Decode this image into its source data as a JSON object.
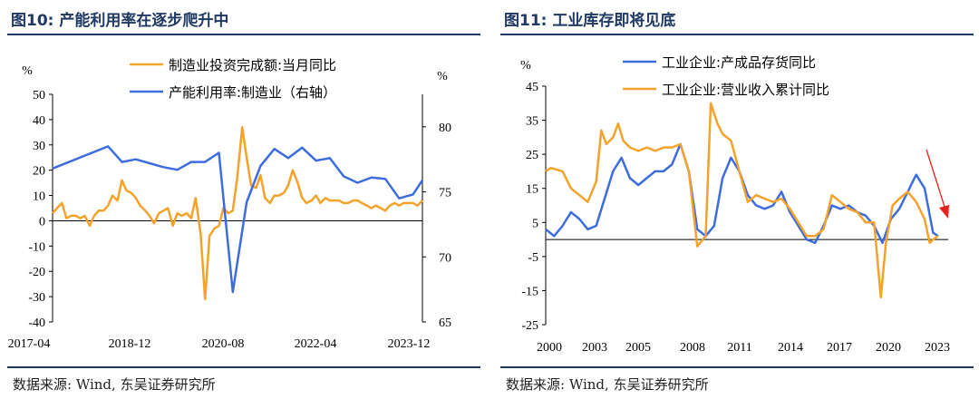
{
  "colors": {
    "blue": "#3d6cde",
    "orange": "#f5a22a",
    "title": "#1f3864",
    "red": "#e8201d"
  },
  "left": {
    "title": "图10:  产能利用率在逐步爬升中",
    "source": "数据来源:  Wind,  东吴证券研究所",
    "chart_data": {
      "type": "line",
      "left_unit": "%",
      "right_unit": "%",
      "left_ylim": [
        -40,
        50
      ],
      "left_ticks": [
        "50",
        "40",
        "30",
        "20",
        "10",
        "0",
        "-10",
        "-20",
        "-30",
        "-40"
      ],
      "right_ylim": [
        65,
        82.5
      ],
      "right_ticks": [
        "80",
        "75",
        "70",
        "65"
      ],
      "x_labels": [
        "2017-04",
        "2018-12",
        "2020-08",
        "2022-04",
        "2023-12"
      ],
      "series": [
        {
          "name": "制造业投资完成额:当月同比",
          "axis": "left",
          "color": "orange",
          "x": [
            2017.25,
            2017.33,
            2017.42,
            2017.5,
            2017.58,
            2017.67,
            2017.75,
            2017.83,
            2017.92,
            2018.0,
            2018.08,
            2018.17,
            2018.25,
            2018.33,
            2018.42,
            2018.5,
            2018.58,
            2018.67,
            2018.75,
            2018.83,
            2018.92,
            2019.0,
            2019.08,
            2019.17,
            2019.25,
            2019.33,
            2019.42,
            2019.5,
            2019.58,
            2019.67,
            2019.75,
            2019.83,
            2019.92,
            2020.0,
            2020.08,
            2020.17,
            2020.25,
            2020.33,
            2020.42,
            2020.5,
            2020.58,
            2020.67,
            2020.75,
            2020.83,
            2020.92,
            2021.0,
            2021.08,
            2021.17,
            2021.25,
            2021.33,
            2021.42,
            2021.5,
            2021.58,
            2021.67,
            2021.75,
            2021.83,
            2021.92,
            2022.0,
            2022.08,
            2022.17,
            2022.25,
            2022.33,
            2022.42,
            2022.5,
            2022.58,
            2022.67,
            2022.75,
            2022.83,
            2022.92,
            2023.0,
            2023.08,
            2023.17,
            2023.25,
            2023.33,
            2023.42,
            2023.5,
            2023.58,
            2023.67,
            2023.75,
            2023.83,
            2023.92
          ],
          "y": [
            3,
            5,
            7,
            1,
            2,
            2,
            1,
            2,
            -2,
            2,
            4,
            4,
            6,
            10,
            8,
            16,
            12,
            11,
            9,
            6,
            4,
            2,
            -1,
            3,
            4,
            5,
            -2,
            3,
            2,
            3,
            1,
            9,
            -5,
            -31,
            -6,
            -3,
            -2,
            5,
            3,
            4,
            17,
            37,
            25,
            14,
            13,
            18,
            9,
            7,
            10,
            10,
            11,
            14,
            20,
            15,
            9,
            7,
            8,
            10,
            7,
            9,
            8,
            8,
            8,
            7,
            7,
            8,
            8,
            7,
            6,
            5,
            6,
            5,
            4,
            6,
            7,
            6,
            7,
            7,
            7,
            6,
            8
          ]
        },
        {
          "name": "产能利用率:制造业（右轴）",
          "axis": "right",
          "color": "blue",
          "x": [
            2017.25,
            2018.25,
            2018.5,
            2018.75,
            2019.0,
            2019.25,
            2019.5,
            2019.75,
            2020.0,
            2020.25,
            2020.5,
            2020.75,
            2021.0,
            2021.25,
            2021.5,
            2021.75,
            2022.0,
            2022.25,
            2022.5,
            2022.75,
            2023.0,
            2023.25,
            2023.5,
            2023.75,
            2023.92
          ],
          "y": [
            76.8,
            78.5,
            77.3,
            77.5,
            77.2,
            76.9,
            76.7,
            77.3,
            77.3,
            78.0,
            67.3,
            74.2,
            77.0,
            78.3,
            77.6,
            78.4,
            77.4,
            77.6,
            76.2,
            75.7,
            76.1,
            76.0,
            74.5,
            74.8,
            75.9
          ]
        }
      ]
    }
  },
  "right": {
    "title": "图11:  工业库存即将见底",
    "source": "数据来源:  Wind,  东吴证券研究所",
    "chart_data": {
      "type": "line",
      "left_unit": "%",
      "ylim": [
        -25,
        45
      ],
      "y_ticks": [
        "45",
        "35",
        "25",
        "15",
        "5",
        "-5",
        "-15",
        "-25"
      ],
      "x_labels": [
        "2000",
        "2003",
        "2005",
        "2008",
        "2011",
        "2014",
        "2017",
        "2020",
        "2023"
      ],
      "series": [
        {
          "name": "工业企业:产成品存货同比",
          "color": "blue",
          "x": [
            2000.0,
            2000.5,
            2001.0,
            2001.5,
            2002.0,
            2002.5,
            2003.0,
            2003.5,
            2004.0,
            2004.5,
            2005.0,
            2005.5,
            2006.0,
            2006.5,
            2007.0,
            2007.5,
            2008.0,
            2008.5,
            2009.0,
            2009.5,
            2010.0,
            2010.5,
            2011.0,
            2011.5,
            2012.0,
            2012.5,
            2013.0,
            2013.5,
            2014.0,
            2014.5,
            2015.0,
            2015.5,
            2016.0,
            2016.5,
            2017.0,
            2017.5,
            2018.0,
            2018.5,
            2019.0,
            2019.5,
            2020.0,
            2020.5,
            2021.0,
            2021.5,
            2022.0,
            2022.5,
            2023.0,
            2023.3
          ],
          "y": [
            3,
            1,
            4,
            8,
            6,
            3,
            4,
            12,
            20,
            24,
            18,
            16,
            18,
            20,
            20,
            22,
            28,
            20,
            3,
            1,
            4,
            18,
            24,
            20,
            13,
            10,
            9,
            10,
            14,
            8,
            4,
            0,
            -1,
            4,
            10,
            9,
            10,
            8,
            7,
            4,
            -1,
            6,
            9,
            14,
            19,
            15,
            2,
            1
          ]
        },
        {
          "name": "工业企业:营业收入累计同比",
          "color": "orange",
          "x": [
            2000.0,
            2000.3,
            2001.0,
            2001.5,
            2002.0,
            2002.5,
            2003.0,
            2003.3,
            2003.6,
            2004.0,
            2004.3,
            2004.6,
            2005.0,
            2005.5,
            2006.0,
            2006.5,
            2007.0,
            2007.5,
            2008.0,
            2008.5,
            2009.0,
            2009.5,
            2009.8,
            2010.2,
            2010.5,
            2011.0,
            2011.5,
            2012.0,
            2012.5,
            2013.0,
            2013.5,
            2014.0,
            2014.5,
            2015.0,
            2015.5,
            2016.0,
            2016.5,
            2017.0,
            2017.5,
            2018.0,
            2018.5,
            2019.0,
            2019.5,
            2019.9,
            2020.2,
            2020.6,
            2021.0,
            2021.5,
            2022.0,
            2022.5,
            2022.8,
            2023.0,
            2023.3
          ],
          "y": [
            20,
            21,
            20,
            15,
            13,
            11,
            17,
            32,
            28,
            30,
            34,
            29,
            27,
            26,
            27,
            26,
            27,
            27,
            28,
            20,
            -2,
            1,
            40,
            34,
            31,
            29,
            20,
            11,
            13,
            12,
            11,
            12,
            9,
            5,
            1,
            1,
            3,
            13,
            11,
            9,
            8,
            5,
            5,
            -17,
            -1,
            10,
            12,
            14,
            11,
            6,
            -1,
            0,
            1
          ]
        }
      ]
    }
  }
}
